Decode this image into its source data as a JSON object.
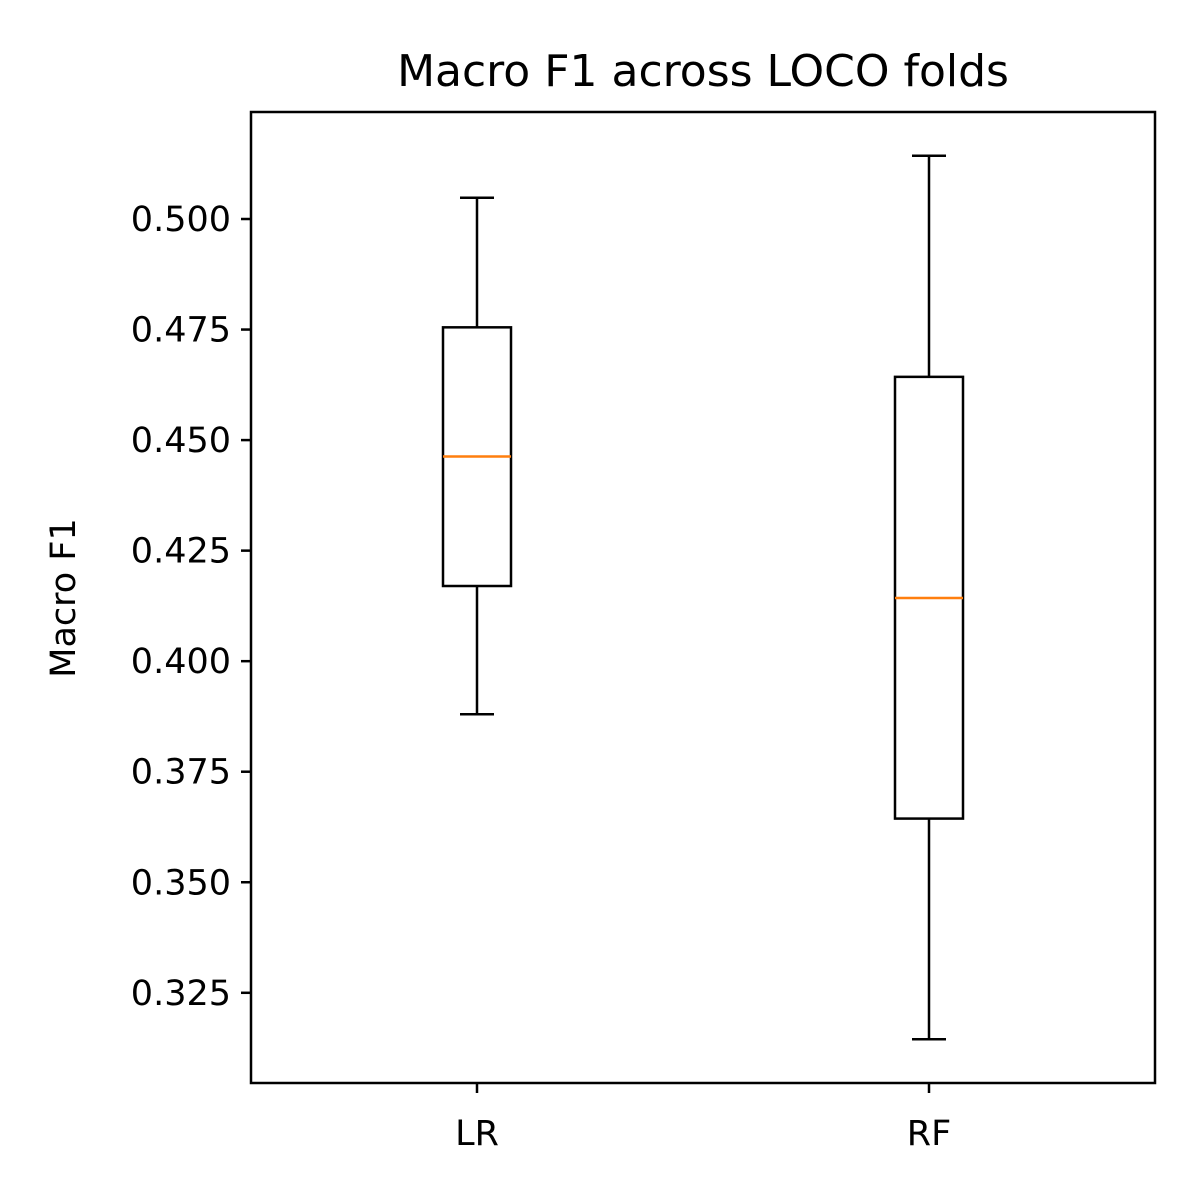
{
  "chart_data": {
    "type": "box",
    "title": "Macro F1 across LOCO folds",
    "xlabel": "",
    "ylabel": "Macro F1",
    "categories": [
      "LR",
      "RF"
    ],
    "boxes": [
      {
        "category": "LR",
        "whisker_low": 0.388,
        "q1": 0.417,
        "median": 0.4463,
        "q3": 0.4755,
        "whisker_high": 0.5048
      },
      {
        "category": "RF",
        "whisker_low": 0.3145,
        "q1": 0.3644,
        "median": 0.4143,
        "q3": 0.4643,
        "whisker_high": 0.5143
      }
    ],
    "yticks": [
      0.325,
      0.35,
      0.375,
      0.4,
      0.425,
      0.45,
      0.475,
      0.5
    ],
    "ytick_labels": [
      "0.325",
      "0.350",
      "0.375",
      "0.400",
      "0.425",
      "0.450",
      "0.475",
      "0.500"
    ],
    "ylim": [
      0.3046,
      0.5242
    ],
    "grid": false,
    "colors": {
      "box": "#000000",
      "median": "#ff7f0e"
    }
  }
}
